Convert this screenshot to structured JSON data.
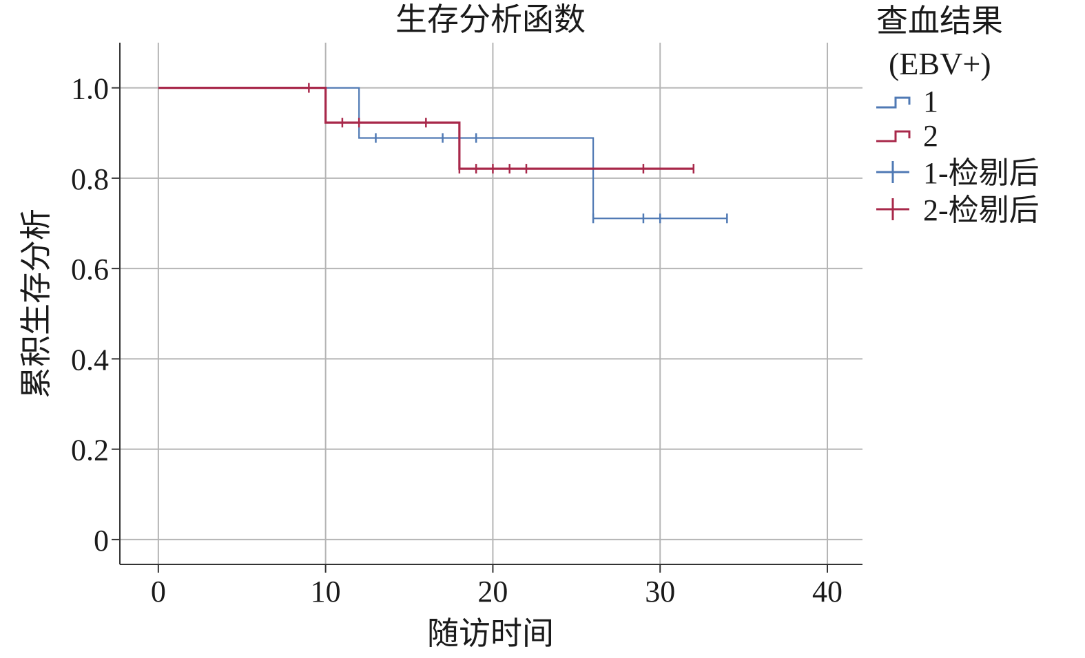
{
  "chart_data": {
    "type": "line",
    "subtype": "kaplan-meier step",
    "title": "生存分析函数",
    "xlabel": "随访时间",
    "ylabel": "累积生存分析",
    "xlim": [
      -2.3,
      42.1
    ],
    "ylim": [
      -0.055,
      1.1
    ],
    "xticks": [
      0,
      10,
      20,
      30,
      40
    ],
    "xtick_labels": [
      "0",
      "10",
      "20",
      "30",
      "40"
    ],
    "yticks": [
      0,
      0.2,
      0.4,
      0.6,
      0.8,
      1.0
    ],
    "ytick_labels": [
      "0",
      "0.2",
      "0.4",
      "0.6",
      "0.8",
      "1.0"
    ],
    "grid": true,
    "legend": {
      "placement": "top-right outside plot",
      "title_line1": "查血结果",
      "title_line2": "(EBV+)",
      "entries": [
        "1",
        "2",
        "1-检剔后",
        "2-检剔后"
      ]
    },
    "series": [
      {
        "name": "1",
        "color": "#4f79b4",
        "steps": [
          [
            0,
            1.0
          ],
          [
            12,
            0.889
          ],
          [
            26,
            0.711
          ],
          [
            34,
            0.711
          ]
        ],
        "censored_name": "1-检剔后",
        "censored": [
          [
            13,
            0.889
          ],
          [
            17,
            0.889
          ],
          [
            19,
            0.889
          ],
          [
            26,
            0.711
          ],
          [
            29,
            0.711
          ],
          [
            30,
            0.711
          ],
          [
            34,
            0.711
          ]
        ]
      },
      {
        "name": "2",
        "color": "#a8284a",
        "steps": [
          [
            0,
            1.0
          ],
          [
            10,
            0.923
          ],
          [
            18,
            0.821
          ],
          [
            32,
            0.821
          ]
        ],
        "censored_name": "2-检剔后",
        "censored": [
          [
            9,
            1.0
          ],
          [
            11,
            0.923
          ],
          [
            12,
            0.923
          ],
          [
            16,
            0.923
          ],
          [
            18,
            0.821
          ],
          [
            19,
            0.821
          ],
          [
            20,
            0.821
          ],
          [
            21,
            0.821
          ],
          [
            22,
            0.821
          ],
          [
            29,
            0.821
          ],
          [
            32,
            0.821
          ]
        ]
      }
    ]
  }
}
